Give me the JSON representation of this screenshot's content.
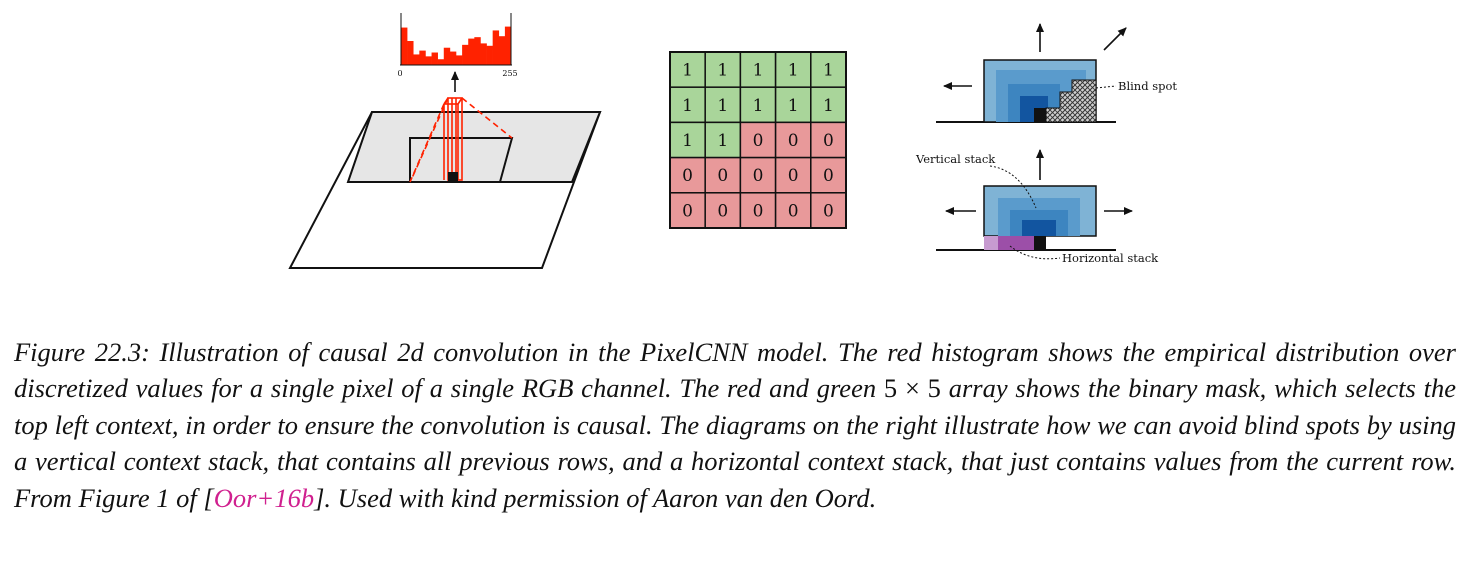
{
  "figure": {
    "histogram": {
      "axis_min_label": "0",
      "axis_max_label": "255",
      "bar_heights": [
        0.78,
        0.5,
        0.22,
        0.3,
        0.18,
        0.26,
        0.12,
        0.36,
        0.28,
        0.2,
        0.42,
        0.55,
        0.58,
        0.45,
        0.4,
        0.72,
        0.6,
        0.8
      ],
      "color": "#ff2200"
    },
    "mask": {
      "rows": [
        [
          "1",
          "1",
          "1",
          "1",
          "1"
        ],
        [
          "1",
          "1",
          "1",
          "1",
          "1"
        ],
        [
          "1",
          "1",
          "0",
          "0",
          "0"
        ],
        [
          "0",
          "0",
          "0",
          "0",
          "0"
        ],
        [
          "0",
          "0",
          "0",
          "0",
          "0"
        ]
      ],
      "one_color": "#a9d59a",
      "zero_color": "#e8999a"
    },
    "blind_spot_label": "Blind spot",
    "vertical_stack_label": "Vertical stack",
    "horizontal_stack_label": "Horizontal stack",
    "colors": {
      "stack_light": "#7fb3d5",
      "stack_mid": "#3d85c0",
      "stack_dark": "#1255a0",
      "horizontal_light": "#c79bd0",
      "horizontal_dark": "#9c4fa8",
      "plane_gray": "#e6e6e6"
    }
  },
  "caption": {
    "prefix": "Figure 22.3: Illustration of causal 2d convolution in the PixelCNN model.  The red histogram shows the empirical distribution over discretized values for a single pixel of a single RGB channel.  The red and green ",
    "math": "5 × 5",
    "middle": " array shows the binary mask, which selects the top left context, in order to ensure the convolution is causal.  The diagrams on the right illustrate how we can avoid blind spots by using a vertical context stack, that contains all previous rows, and a horizontal context stack, that just contains values from the current row.  From Figure 1 of [",
    "citation": "Oor+16b",
    "suffix": "].  Used with kind permission of Aaron van den Oord."
  }
}
